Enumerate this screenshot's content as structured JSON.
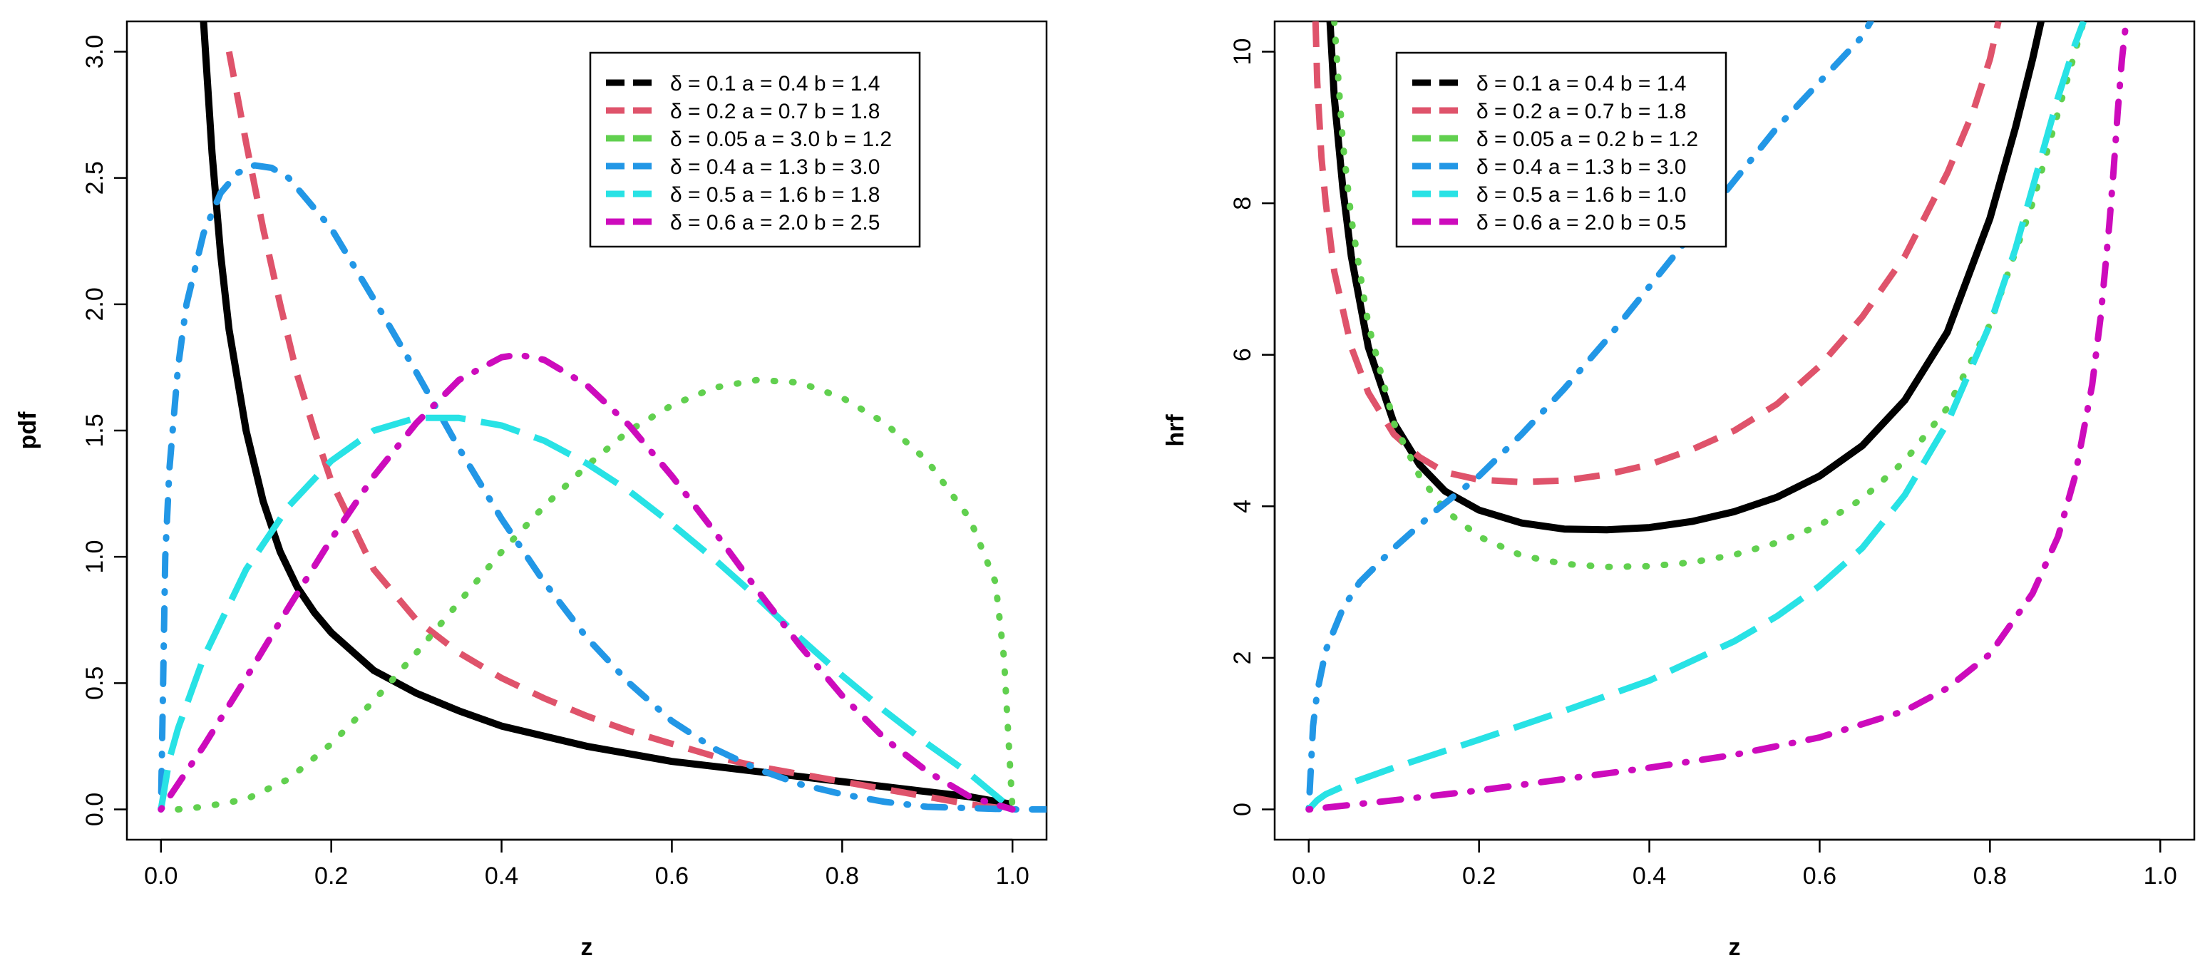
{
  "chart_data": [
    {
      "type": "line",
      "name": "pdf",
      "xlabel": "z",
      "ylabel": "pdf",
      "xlim": [
        -0.04,
        1.04
      ],
      "ylim": [
        -0.12,
        3.12
      ],
      "xticks": [
        0.0,
        0.2,
        0.4,
        0.6,
        0.8,
        1.0
      ],
      "xtick_labels": [
        "0.0",
        "0.2",
        "0.4",
        "0.6",
        "0.8",
        "1.0"
      ],
      "yticks": [
        0.0,
        0.5,
        1.0,
        1.5,
        2.0,
        2.5,
        3.0
      ],
      "ytick_labels": [
        "0.0",
        "0.5",
        "1.0",
        "1.5",
        "2.0",
        "2.5",
        "3.0"
      ],
      "legend_position": "top-right",
      "series": [
        {
          "name": "δ = 0.1  a = 0.4  b = 1.4",
          "color": "#000000",
          "dash": "solid",
          "x": [
            0.05,
            0.06,
            0.07,
            0.08,
            0.1,
            0.12,
            0.14,
            0.16,
            0.18,
            0.2,
            0.25,
            0.3,
            0.35,
            0.4,
            0.45,
            0.5,
            0.55,
            0.6,
            0.65,
            0.7,
            0.75,
            0.8,
            0.85,
            0.9,
            0.95,
            1.0
          ],
          "y": [
            3.12,
            2.6,
            2.2,
            1.9,
            1.5,
            1.22,
            1.02,
            0.88,
            0.78,
            0.7,
            0.55,
            0.46,
            0.39,
            0.33,
            0.29,
            0.25,
            0.22,
            0.19,
            0.17,
            0.15,
            0.13,
            0.11,
            0.09,
            0.07,
            0.05,
            0.02
          ]
        },
        {
          "name": "δ = 0.2  a = 0.7  b = 1.8",
          "color": "#DF536B",
          "dash": "dashed",
          "x": [
            0.08,
            0.09,
            0.1,
            0.12,
            0.14,
            0.16,
            0.18,
            0.2,
            0.25,
            0.3,
            0.35,
            0.4,
            0.45,
            0.5,
            0.55,
            0.6,
            0.65,
            0.7,
            0.75,
            0.8,
            0.85,
            0.9,
            0.95,
            1.0
          ],
          "y": [
            3.0,
            2.82,
            2.64,
            2.3,
            2.0,
            1.72,
            1.5,
            1.3,
            0.95,
            0.75,
            0.62,
            0.52,
            0.44,
            0.37,
            0.31,
            0.26,
            0.21,
            0.17,
            0.14,
            0.11,
            0.08,
            0.05,
            0.02,
            0.0
          ]
        },
        {
          "name": "δ = 0.05  a = 3.0  b = 1.2",
          "color": "#61D04F",
          "dash": "dotted",
          "x": [
            0.02,
            0.05,
            0.1,
            0.15,
            0.2,
            0.25,
            0.3,
            0.35,
            0.4,
            0.45,
            0.5,
            0.55,
            0.6,
            0.65,
            0.7,
            0.75,
            0.8,
            0.85,
            0.9,
            0.95,
            0.98,
            0.99,
            1.0
          ],
          "y": [
            0.0,
            0.01,
            0.04,
            0.12,
            0.26,
            0.43,
            0.62,
            0.82,
            1.02,
            1.2,
            1.36,
            1.5,
            1.6,
            1.67,
            1.7,
            1.69,
            1.63,
            1.53,
            1.38,
            1.15,
            0.9,
            0.6,
            0.0
          ]
        },
        {
          "name": "δ = 0.4  a = 1.3  b = 3.0",
          "color": "#2297E6",
          "dash": "dotdash",
          "x": [
            0.0,
            0.005,
            0.01,
            0.02,
            0.03,
            0.05,
            0.07,
            0.09,
            0.11,
            0.13,
            0.15,
            0.2,
            0.25,
            0.3,
            0.35,
            0.4,
            0.45,
            0.5,
            0.55,
            0.6,
            0.65,
            0.7,
            0.75,
            0.8,
            0.85,
            0.9,
            0.95,
            1.0,
            1.04
          ],
          "y": [
            0.0,
            1.0,
            1.35,
            1.75,
            2.0,
            2.28,
            2.44,
            2.52,
            2.55,
            2.54,
            2.5,
            2.3,
            2.02,
            1.73,
            1.43,
            1.15,
            0.9,
            0.68,
            0.5,
            0.35,
            0.24,
            0.16,
            0.1,
            0.06,
            0.03,
            0.01,
            0.005,
            0.0,
            0.0
          ]
        },
        {
          "name": "δ = 0.5  a = 1.6  b = 1.8",
          "color": "#28E2E5",
          "dash": "longdash",
          "x": [
            0.0,
            0.01,
            0.02,
            0.05,
            0.1,
            0.15,
            0.2,
            0.25,
            0.3,
            0.35,
            0.4,
            0.45,
            0.5,
            0.55,
            0.6,
            0.65,
            0.7,
            0.75,
            0.8,
            0.85,
            0.9,
            0.95,
            1.0
          ],
          "y": [
            0.0,
            0.2,
            0.32,
            0.6,
            0.95,
            1.2,
            1.38,
            1.5,
            1.55,
            1.55,
            1.52,
            1.46,
            1.37,
            1.26,
            1.13,
            0.99,
            0.84,
            0.68,
            0.53,
            0.39,
            0.26,
            0.14,
            0.0
          ]
        },
        {
          "name": "δ = 0.6  a = 2.0  b = 2.5",
          "color": "#CD0BBC",
          "dash": "dotdash",
          "x": [
            0.0,
            0.05,
            0.1,
            0.15,
            0.2,
            0.25,
            0.3,
            0.35,
            0.4,
            0.42,
            0.45,
            0.5,
            0.55,
            0.6,
            0.65,
            0.7,
            0.75,
            0.8,
            0.85,
            0.9,
            0.95,
            1.0
          ],
          "y": [
            0.0,
            0.25,
            0.52,
            0.8,
            1.07,
            1.32,
            1.53,
            1.7,
            1.79,
            1.8,
            1.78,
            1.68,
            1.52,
            1.32,
            1.1,
            0.87,
            0.65,
            0.45,
            0.28,
            0.15,
            0.05,
            0.0
          ]
        }
      ]
    },
    {
      "type": "line",
      "name": "hrf",
      "xlabel": "z",
      "ylabel": "hrf",
      "xlim": [
        -0.04,
        1.04
      ],
      "ylim": [
        -0.4,
        10.4
      ],
      "xticks": [
        0.0,
        0.2,
        0.4,
        0.6,
        0.8,
        1.0
      ],
      "xtick_labels": [
        "0.0",
        "0.2",
        "0.4",
        "0.6",
        "0.8",
        "1.0"
      ],
      "yticks": [
        0,
        2,
        4,
        6,
        8,
        10
      ],
      "ytick_labels": [
        "0",
        "2",
        "4",
        "6",
        "8",
        "10"
      ],
      "legend_position": "top-left",
      "series": [
        {
          "name": "δ = 0.1  a = 0.4  b = 1.4",
          "color": "#000000",
          "dash": "solid",
          "x": [
            0.025,
            0.03,
            0.04,
            0.05,
            0.07,
            0.1,
            0.13,
            0.16,
            0.2,
            0.25,
            0.3,
            0.35,
            0.4,
            0.45,
            0.5,
            0.55,
            0.6,
            0.65,
            0.7,
            0.75,
            0.8,
            0.83,
            0.85,
            0.86
          ],
          "y": [
            10.4,
            9.4,
            8.2,
            7.3,
            6.1,
            5.1,
            4.55,
            4.2,
            3.95,
            3.78,
            3.7,
            3.69,
            3.72,
            3.8,
            3.93,
            4.12,
            4.4,
            4.8,
            5.4,
            6.3,
            7.8,
            9.0,
            9.9,
            10.4
          ]
        },
        {
          "name": "δ = 0.2  a = 0.7  b = 1.8",
          "color": "#DF536B",
          "dash": "dashed",
          "x": [
            0.008,
            0.01,
            0.015,
            0.02,
            0.03,
            0.05,
            0.07,
            0.1,
            0.13,
            0.16,
            0.2,
            0.25,
            0.3,
            0.35,
            0.4,
            0.45,
            0.5,
            0.55,
            0.6,
            0.65,
            0.7,
            0.75,
            0.78,
            0.8,
            0.81
          ],
          "y": [
            10.4,
            9.6,
            8.6,
            8.0,
            7.1,
            6.1,
            5.5,
            4.95,
            4.65,
            4.45,
            4.35,
            4.32,
            4.34,
            4.42,
            4.55,
            4.75,
            5.0,
            5.35,
            5.85,
            6.5,
            7.3,
            8.4,
            9.2,
            9.9,
            10.4
          ]
        },
        {
          "name": "δ = 0.05  a = 0.2  b = 1.2",
          "color": "#61D04F",
          "dash": "dotted",
          "x": [
            0.03,
            0.04,
            0.05,
            0.07,
            0.1,
            0.13,
            0.16,
            0.2,
            0.25,
            0.3,
            0.35,
            0.4,
            0.45,
            0.5,
            0.55,
            0.6,
            0.65,
            0.7,
            0.75,
            0.8,
            0.85,
            0.88,
            0.9,
            0.91
          ],
          "y": [
            10.4,
            8.8,
            7.8,
            6.4,
            5.1,
            4.4,
            3.95,
            3.6,
            3.35,
            3.24,
            3.2,
            3.21,
            3.26,
            3.36,
            3.52,
            3.75,
            4.1,
            4.6,
            5.3,
            6.4,
            8.0,
            9.2,
            10.0,
            10.4
          ]
        },
        {
          "name": "δ = 0.4  a = 1.3  b = 3.0",
          "color": "#2297E6",
          "dash": "dotdash",
          "x": [
            0.0,
            0.005,
            0.01,
            0.02,
            0.04,
            0.06,
            0.1,
            0.15,
            0.2,
            0.25,
            0.3,
            0.35,
            0.4,
            0.45,
            0.5,
            0.55,
            0.6,
            0.65,
            0.66
          ],
          "y": [
            0.0,
            1.1,
            1.55,
            2.1,
            2.65,
            3.0,
            3.45,
            3.95,
            4.4,
            4.95,
            5.55,
            6.2,
            6.9,
            7.6,
            8.3,
            9.0,
            9.6,
            10.2,
            10.4
          ]
        },
        {
          "name": "δ = 0.5  a = 1.6  b = 1.0",
          "color": "#28E2E5",
          "dash": "longdash",
          "x": [
            0.0,
            0.01,
            0.02,
            0.05,
            0.1,
            0.2,
            0.3,
            0.4,
            0.5,
            0.55,
            0.6,
            0.65,
            0.7,
            0.75,
            0.8,
            0.83,
            0.86,
            0.88,
            0.9,
            0.91
          ],
          "y": [
            0.0,
            0.12,
            0.2,
            0.35,
            0.55,
            0.92,
            1.3,
            1.7,
            2.22,
            2.55,
            2.95,
            3.45,
            4.15,
            5.1,
            6.4,
            7.4,
            8.6,
            9.4,
            10.1,
            10.4
          ]
        },
        {
          "name": "δ = 0.6  a = 2.0  b = 0.5",
          "color": "#CD0BBC",
          "dash": "dotdash",
          "x": [
            0.0,
            0.1,
            0.2,
            0.3,
            0.4,
            0.5,
            0.6,
            0.7,
            0.75,
            0.8,
            0.85,
            0.88,
            0.9,
            0.92,
            0.93,
            0.94,
            0.945,
            0.95,
            0.955,
            0.96
          ],
          "y": [
            0.0,
            0.12,
            0.25,
            0.4,
            0.55,
            0.72,
            0.95,
            1.3,
            1.6,
            2.05,
            2.85,
            3.6,
            4.4,
            5.6,
            6.5,
            7.7,
            8.4,
            9.2,
            9.9,
            10.4
          ]
        }
      ]
    }
  ]
}
